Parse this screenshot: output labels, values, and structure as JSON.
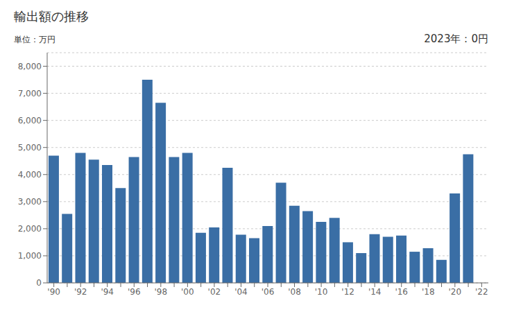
{
  "chart_data": {
    "type": "bar",
    "title": "輸出額の推移",
    "ylabel": "単位：万円",
    "annotation": "2023年：0円",
    "categories": [
      "'90",
      null,
      "'92",
      null,
      "'94",
      null,
      "'96",
      null,
      "'98",
      null,
      "'00",
      null,
      "'02",
      null,
      "'04",
      null,
      "'06",
      null,
      "'08",
      null,
      "'10",
      null,
      "'12",
      null,
      "'14",
      null,
      "'16",
      null,
      "'18",
      null,
      "'20",
      null,
      "'22"
    ],
    "values": [
      4700,
      2550,
      4800,
      4550,
      4350,
      3500,
      4650,
      7500,
      6650,
      4650,
      4800,
      1850,
      2050,
      4250,
      1780,
      1650,
      2100,
      3700,
      2850,
      2650,
      2250,
      2400,
      1500,
      1100,
      1800,
      1700,
      1750,
      1150,
      1280,
      850,
      3300,
      4750,
      0
    ],
    "color": "#3A6EA5",
    "ylim": [
      0,
      8500
    ],
    "yticks": [
      0,
      {
        "value": 1000,
        "label": "1,000"
      },
      {
        "value": 2000,
        "label": "2,000"
      },
      {
        "value": 3000,
        "label": "3,000"
      },
      {
        "value": 4000,
        "label": "4,000"
      },
      {
        "value": 5000,
        "label": "5,000"
      },
      {
        "value": 6000,
        "label": "6,000"
      },
      {
        "value": 7000,
        "label": "7,000"
      },
      {
        "value": 8000,
        "label": "8,000"
      }
    ],
    "grid": true
  }
}
